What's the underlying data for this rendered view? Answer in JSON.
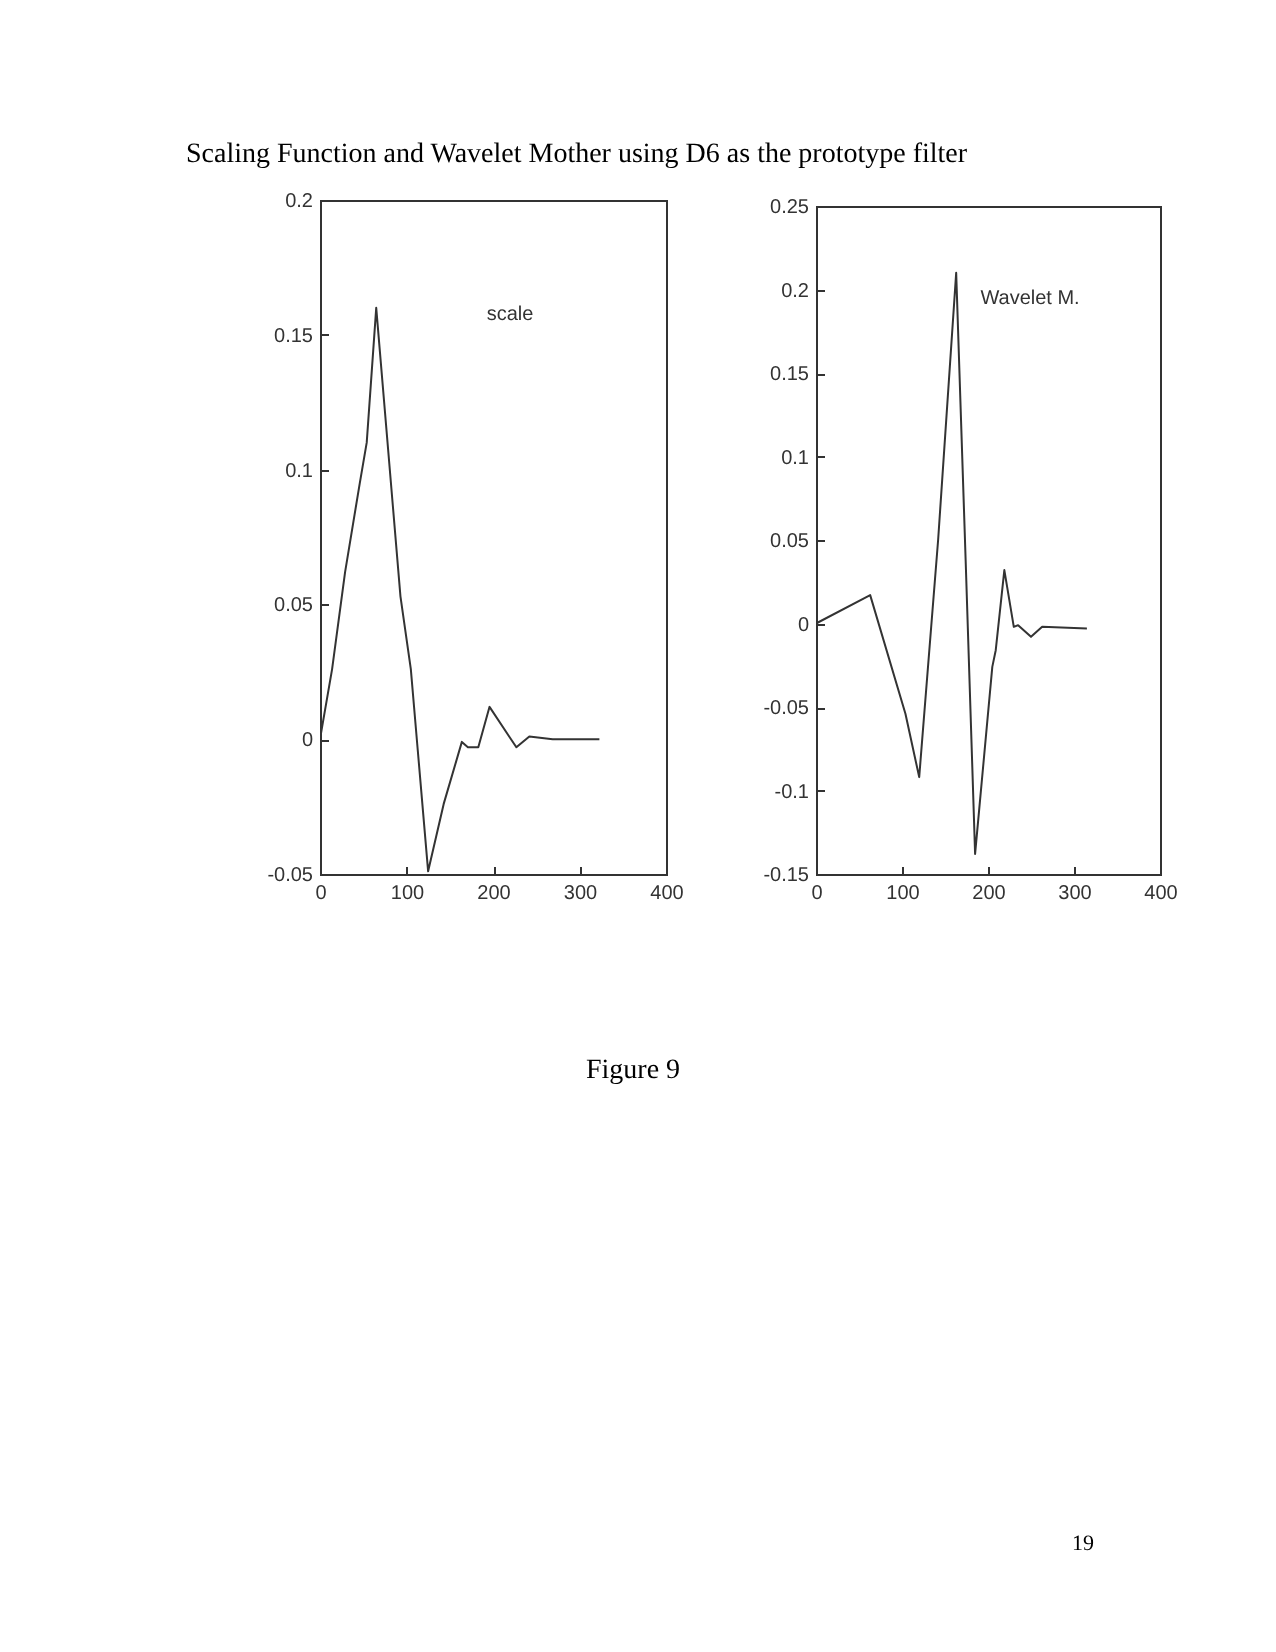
{
  "chart_data": [
    {
      "type": "line",
      "title": "Scaling Function and Wavelet Mother using D6 as the prototype filter",
      "annotations": [
        "scale"
      ],
      "x": [
        0,
        14,
        29,
        46,
        54,
        65,
        93,
        105,
        113,
        125,
        143,
        164,
        171,
        183,
        196,
        227,
        242,
        269,
        323
      ],
      "series": [
        {
          "color": "#333333",
          "values": [
            0,
            0.026,
            0.062,
            0.095,
            0.11,
            0.16,
            0.053,
            0.026,
            -0.004,
            -0.049,
            -0.024,
            -0.001,
            -0.003,
            -0.003,
            0.012,
            -0.003,
            0.001,
            0,
            0
          ]
        }
      ],
      "xlim": [
        0,
        400
      ],
      "xticks": [
        0,
        100,
        200,
        300,
        400
      ],
      "ylim": [
        -0.05,
        0.2
      ],
      "yticks": [
        -0.05,
        0,
        0.05,
        0.1,
        0.15,
        0.2
      ]
    },
    {
      "type": "line",
      "annotations": [
        "Wavelet M.",
        "Figure 9",
        "19"
      ],
      "x": [
        0,
        63,
        104,
        120,
        142,
        163,
        174,
        185,
        205,
        209,
        219,
        230,
        235,
        250,
        263,
        315
      ],
      "series": [
        {
          "color": "#333333",
          "values": [
            0,
            0.017,
            -0.054,
            -0.092,
            0.05,
            0.21,
            0.038,
            -0.138,
            -0.026,
            -0.016,
            0.032,
            -0.002,
            -0.001,
            -0.008,
            -0.002,
            -0.003
          ]
        }
      ],
      "xlim": [
        0,
        400
      ],
      "xticks": [
        0,
        100,
        200,
        300,
        400
      ],
      "ylim": [
        -0.15,
        0.25
      ],
      "yticks": [
        -0.15,
        -0.1,
        -0.05,
        0,
        0.05,
        0.1,
        0.15,
        0.2,
        0.25
      ]
    }
  ]
}
